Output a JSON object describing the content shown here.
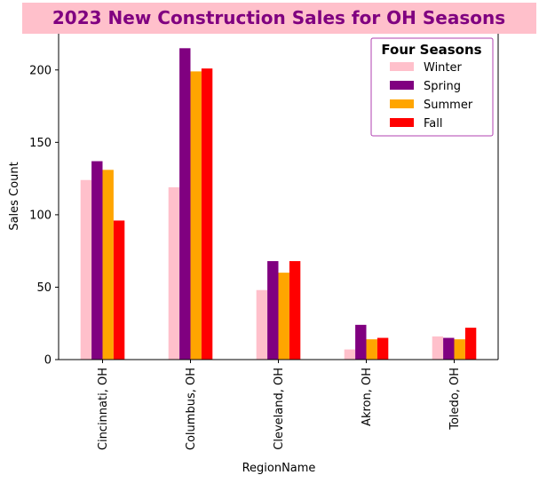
{
  "chart_data": {
    "type": "bar",
    "title": "2023 New Construction Sales for OH Seasons",
    "xlabel": "RegionName",
    "ylabel": "Sales Count",
    "categories": [
      "Cincinnati, OH",
      "Columbus, OH",
      "Cleveland, OH",
      "Akron, OH",
      "Toledo, OH"
    ],
    "series": [
      {
        "name": "Winter",
        "color": "#ffc0cb",
        "values": [
          124,
          119,
          48,
          7,
          16
        ]
      },
      {
        "name": "Spring",
        "color": "#800080",
        "values": [
          137,
          215,
          68,
          24,
          15
        ]
      },
      {
        "name": "Summer",
        "color": "#ffa500",
        "values": [
          131,
          199,
          60,
          14,
          14
        ]
      },
      {
        "name": "Fall",
        "color": "#ff0000",
        "values": [
          96,
          201,
          68,
          15,
          22
        ]
      }
    ],
    "ylim": [
      0,
      225
    ],
    "yticks": [
      0,
      50,
      100,
      150,
      200
    ],
    "grid": false,
    "legend": {
      "title": "Four Seasons",
      "position": "top-right"
    }
  }
}
